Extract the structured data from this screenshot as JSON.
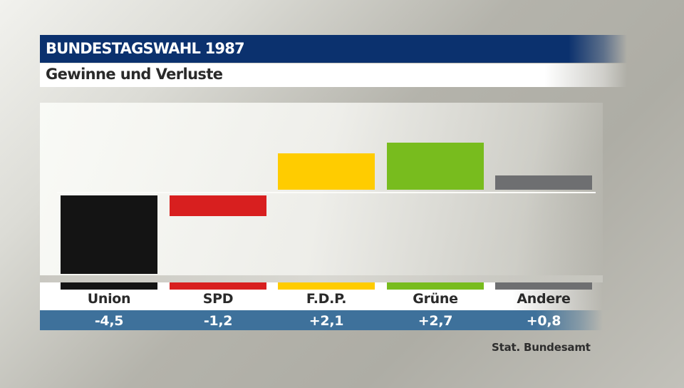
{
  "header": {
    "title": "BUNDESTAGSWAHL 1987",
    "subtitle": "Gewinne und Verluste"
  },
  "source": "Stat. Bundesamt",
  "colors": {
    "title_bg": "#0b316e",
    "value_band_bg": "#3e719b",
    "union": "#141414",
    "spd": "#d81f1f",
    "fdp": "#ffcc00",
    "gruene": "#78bc1e",
    "andere": "#6e6f71"
  },
  "parties": [
    {
      "name": "Union",
      "value_label": "-4,5",
      "value": -4.5,
      "color": "#141414"
    },
    {
      "name": "SPD",
      "value_label": "-1,2",
      "value": -1.2,
      "color": "#d81f1f"
    },
    {
      "name": "F.D.P.",
      "value_label": "+2,1",
      "value": 2.1,
      "color": "#ffcc00"
    },
    {
      "name": "Grüne",
      "value_label": "+2,7",
      "value": 2.7,
      "color": "#78bc1e"
    },
    {
      "name": "Andere",
      "value_label": "+0,8",
      "value": 0.8,
      "color": "#6e6f71"
    }
  ],
  "chart_data": {
    "type": "bar",
    "title": "BUNDESTAGSWAHL 1987",
    "subtitle": "Gewinne und Verluste",
    "categories": [
      "Union",
      "SPD",
      "F.D.P.",
      "Grüne",
      "Andere"
    ],
    "values": [
      -4.5,
      -1.2,
      2.1,
      2.7,
      0.8
    ],
    "value_labels": [
      "-4,5",
      "-1,2",
      "+2,1",
      "+2,7",
      "+0,8"
    ],
    "colors": [
      "#141414",
      "#d81f1f",
      "#ffcc00",
      "#78bc1e",
      "#6e6f71"
    ],
    "xlabel": "",
    "ylabel": "",
    "grid": false,
    "legend": "none",
    "annotation": "Stat. Bundesamt"
  }
}
